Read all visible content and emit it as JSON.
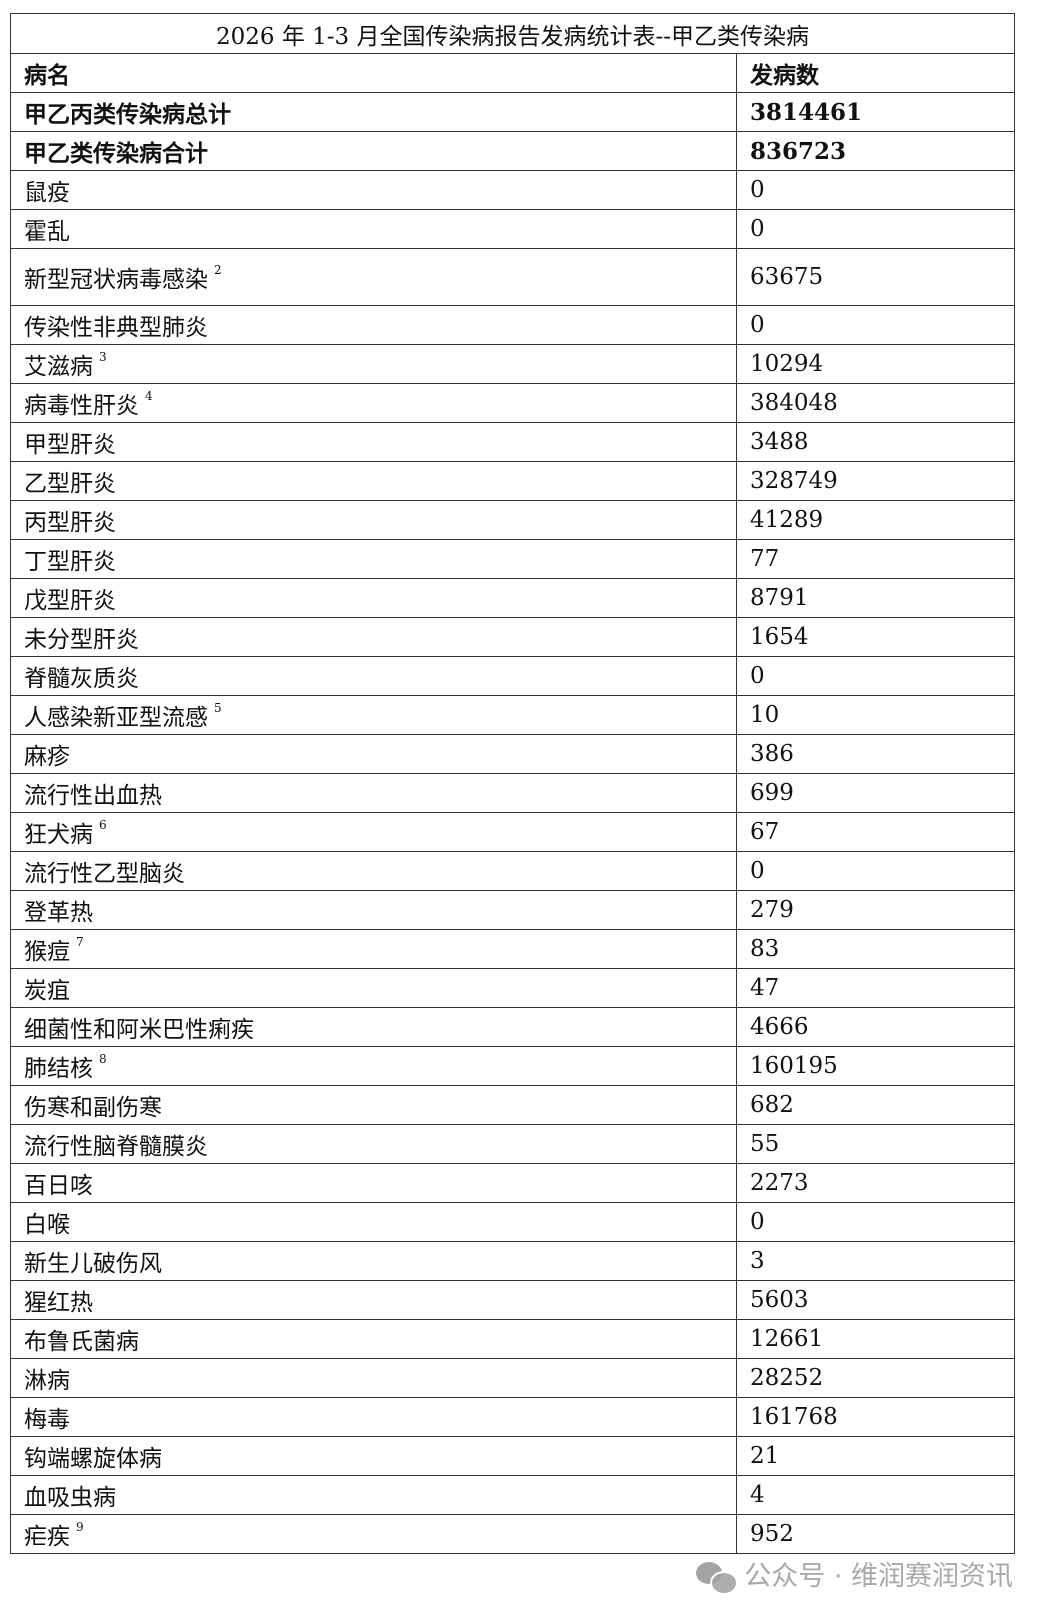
{
  "title": "2026 年 1-3 月全国传染病报告发病统计表--甲乙类传染病",
  "header": {
    "name": "病名",
    "count": "发病数"
  },
  "totals": [
    {
      "name": "甲乙丙类传染病总计",
      "count": "3814461"
    },
    {
      "name": "甲乙类传染病合计",
      "count": "836723"
    }
  ],
  "rows": [
    {
      "name": "鼠疫",
      "note": "",
      "count": "0"
    },
    {
      "name": "霍乱",
      "note": "",
      "count": "0"
    },
    {
      "name": "新型冠状病毒感染",
      "note": "2",
      "count": "63675"
    },
    {
      "name": "传染性非典型肺炎",
      "note": "",
      "count": "0"
    },
    {
      "name": "艾滋病",
      "note": "3",
      "count": "10294"
    },
    {
      "name": "病毒性肝炎",
      "note": "4",
      "count": "384048"
    },
    {
      "name": "甲型肝炎",
      "note": "",
      "count": "3488"
    },
    {
      "name": "乙型肝炎",
      "note": "",
      "count": "328749"
    },
    {
      "name": "丙型肝炎",
      "note": "",
      "count": "41289"
    },
    {
      "name": "丁型肝炎",
      "note": "",
      "count": "77"
    },
    {
      "name": "戊型肝炎",
      "note": "",
      "count": "8791"
    },
    {
      "name": "未分型肝炎",
      "note": "",
      "count": "1654"
    },
    {
      "name": "脊髓灰质炎",
      "note": "",
      "count": "0"
    },
    {
      "name": "人感染新亚型流感",
      "note": "5",
      "count": "10"
    },
    {
      "name": "麻疹",
      "note": "",
      "count": "386"
    },
    {
      "name": "流行性出血热",
      "note": "",
      "count": "699"
    },
    {
      "name": "狂犬病",
      "note": "6",
      "count": "67"
    },
    {
      "name": "流行性乙型脑炎",
      "note": "",
      "count": "0"
    },
    {
      "name": "登革热",
      "note": "",
      "count": "279"
    },
    {
      "name": "猴痘",
      "note": "7",
      "count": "83"
    },
    {
      "name": "炭疽",
      "note": "",
      "count": "47"
    },
    {
      "name": "细菌性和阿米巴性痢疾",
      "note": "",
      "count": "4666"
    },
    {
      "name": "肺结核",
      "note": "8",
      "count": "160195"
    },
    {
      "name": "伤寒和副伤寒",
      "note": "",
      "count": "682"
    },
    {
      "name": "流行性脑脊髓膜炎",
      "note": "",
      "count": "55"
    },
    {
      "name": "百日咳",
      "note": "",
      "count": "2273"
    },
    {
      "name": "白喉",
      "note": "",
      "count": "0"
    },
    {
      "name": "新生儿破伤风",
      "note": "",
      "count": "3"
    },
    {
      "name": "猩红热",
      "note": "",
      "count": "5603"
    },
    {
      "name": "布鲁氏菌病",
      "note": "",
      "count": "12661"
    },
    {
      "name": "淋病",
      "note": "",
      "count": "28252"
    },
    {
      "name": "梅毒",
      "note": "",
      "count": "161768"
    },
    {
      "name": "钩端螺旋体病",
      "note": "",
      "count": "21"
    },
    {
      "name": "血吸虫病",
      "note": "",
      "count": "4"
    },
    {
      "name": "疟疾",
      "note": "9",
      "count": "952"
    }
  ],
  "watermark": {
    "icon": "wechat-icon",
    "text": "公众号 · 维润赛润资讯"
  }
}
